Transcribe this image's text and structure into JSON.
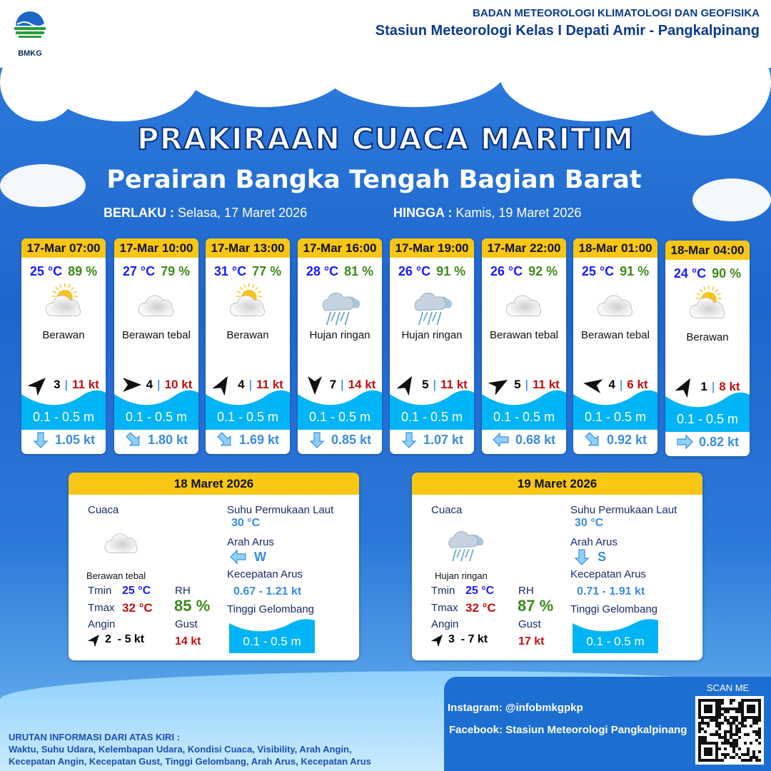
{
  "header": {
    "logo_text": "BMKG",
    "agency": "BADAN METEOROLOGI KLIMATOLOGI DAN GEOFISIKA",
    "station": "Stasiun Meteorologi Kelas I Depati Amir - Pangkalpinang"
  },
  "title": "PRAKIRAAN CUACA MARITIM",
  "subtitle": "Perairan Bangka Tengah Bagian Barat",
  "validity": {
    "from_label": "BERLAKU :",
    "from": "Selasa, 17 Maret 2026",
    "to_label": "HINGGA :",
    "to": "Kamis, 19 Maret 2026"
  },
  "cards": [
    {
      "time": "17-Mar 07:00",
      "temp": "25 °C",
      "rh": "89 %",
      "icon": "partly-cloudy-icon",
      "weather": "Berawan",
      "wind_arrow_deg": 45,
      "wind": "3",
      "gust": "11 kt",
      "wave": "0.1 - 0.5 m",
      "current_dir": "down",
      "current": "1.05 kt"
    },
    {
      "time": "17-Mar 10:00",
      "temp": "27 °C",
      "rh": "79 %",
      "icon": "cloudy-icon",
      "weather": "Berawan tebal",
      "wind_arrow_deg": 90,
      "wind": "4",
      "gust": "10 kt",
      "wave": "0.1 - 0.5 m",
      "current_dir": "down-right",
      "current": "1.80 kt"
    },
    {
      "time": "17-Mar 13:00",
      "temp": "31 °C",
      "rh": "77 %",
      "icon": "partly-cloudy-icon",
      "weather": "Berawan",
      "wind_arrow_deg": 30,
      "wind": "4",
      "gust": "11 kt",
      "wave": "0.1 - 0.5 m",
      "current_dir": "down-right",
      "current": "1.69 kt"
    },
    {
      "time": "17-Mar 16:00",
      "temp": "28 °C",
      "rh": "81 %",
      "icon": "light-rain-icon",
      "weather": "Hujan ringan",
      "wind_arrow_deg": 180,
      "wind": "7",
      "gust": "14 kt",
      "wave": "0.1 - 0.5 m",
      "current_dir": "down",
      "current": "0.85 kt"
    },
    {
      "time": "17-Mar 19:00",
      "temp": "26 °C",
      "rh": "91 %",
      "icon": "light-rain-icon",
      "weather": "Hujan ringan",
      "wind_arrow_deg": 30,
      "wind": "5",
      "gust": "11 kt",
      "wave": "0.1 - 0.5 m",
      "current_dir": "down",
      "current": "1.07 kt"
    },
    {
      "time": "17-Mar 22:00",
      "temp": "26 °C",
      "rh": "92 %",
      "icon": "cloudy-icon",
      "weather": "Berawan tebal",
      "wind_arrow_deg": 60,
      "wind": "5",
      "gust": "11 kt",
      "wave": "0.1 - 0.5 m",
      "current_dir": "left",
      "current": "0.68 kt"
    },
    {
      "time": "18-Mar 01:00",
      "temp": "25 °C",
      "rh": "91 %",
      "icon": "cloudy-icon",
      "weather": "Berawan tebal",
      "wind_arrow_deg": -80,
      "wind": "4",
      "gust": "6 kt",
      "wave": "0.1 - 0.5 m",
      "current_dir": "down-right",
      "current": "0.92 kt"
    },
    {
      "time": "18-Mar 04:00",
      "temp": "24 °C",
      "rh": "90 %",
      "icon": "partly-cloudy-icon",
      "weather": "Berawan",
      "wind_arrow_deg": 30,
      "wind": "1",
      "gust": "8 kt",
      "wave": "0.1 - 0.5 m",
      "current_dir": "right",
      "current": "0.82 kt"
    }
  ],
  "labels": {
    "weather": "Cuaca",
    "sst": "Suhu Permukaan Laut",
    "cur_dir": "Arah Arus",
    "cur_speed": "Kecepatan Arus",
    "wave": "Tinggi Gelombang",
    "tmin": "Tmin",
    "tmax": "Tmax",
    "rh": "RH",
    "wind": "Angin",
    "gust": "Gust"
  },
  "summaries": [
    {
      "date": "18 Maret 2026",
      "icon": "cloudy-icon",
      "weather": "Berawan tebal",
      "tmin": "25 °C",
      "tmax": "32 °C",
      "rh": "85 %",
      "wind": "2  - 5 kt",
      "gust": "14 kt",
      "sst": "30 °C",
      "cur_dir_icon": "left",
      "cur_dir": "W",
      "cur_speed": "0.67 - 1.21 kt",
      "wave": "0.1 - 0.5 m"
    },
    {
      "date": "19 Maret 2026",
      "icon": "light-rain-icon",
      "weather": "Hujan ringan",
      "tmin": "25 °C",
      "tmax": "32 °C",
      "rh": "87 %",
      "wind": "3  - 7 kt",
      "gust": "17 kt",
      "sst": "30 °C",
      "cur_dir_icon": "down",
      "cur_dir": "S",
      "cur_speed": "0.71 - 1.91 kt",
      "wave": "0.1 - 0.5 m"
    }
  ],
  "footer": {
    "legend_title": "URUTAN INFORMASI DARI ATAS KIRI :",
    "legend_1": "Waktu, Suhu Udara, Kelembapan Udara, Kondisi Cuaca, Visibility, Arah Angin,",
    "legend_2": "Kecepatan Angin, Kecepatan Gust, Tinggi Gelombang, Arah Arus, Kecepatan Arus",
    "instagram": "Instagram:  @infobmkgpkp",
    "facebook": "Facebook:  Stasiun  Meteorologi  Pangkalpinang",
    "scan": "SCAN ME"
  },
  "colors": {
    "header_yellow": "#f8c715",
    "temp": "#1a1aff",
    "rh": "#3f8a1a",
    "gust": "#c21010",
    "wave": "#00b4f5"
  }
}
